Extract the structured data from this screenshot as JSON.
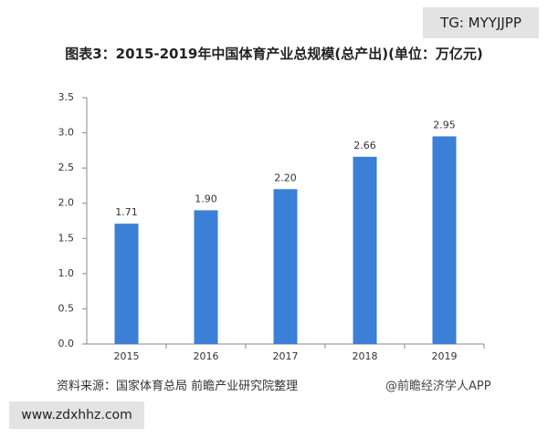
{
  "chart_data": {
    "type": "bar",
    "title": "图表3：2015-2019年中国体育产业总规模(总产出)(单位：万亿元)",
    "categories": [
      "2015",
      "2016",
      "2017",
      "2018",
      "2019"
    ],
    "values": [
      1.71,
      1.9,
      2.2,
      2.66,
      2.95
    ],
    "value_labels": [
      "1.71",
      "1.90",
      "2.20",
      "2.66",
      "2.95"
    ],
    "color": "#3b7fd6",
    "ylim": [
      0,
      3.5
    ],
    "yticks": [
      {
        "value": 0,
        "label": "0.0"
      },
      0.5,
      {
        "value": 1,
        "label": "1.0"
      },
      1.5,
      {
        "value": 2,
        "label": "2.0"
      },
      2.5,
      {
        "value": 3,
        "label": "3.0"
      },
      3.5
    ],
    "source": "资料来源：国家体育总局 前瞻产业研究院整理",
    "watermark": "@前瞻经济学人APP"
  },
  "overlays": {
    "top_right": "TG: MYYJJPP",
    "bottom_left": "www.zdxhhz.com"
  }
}
